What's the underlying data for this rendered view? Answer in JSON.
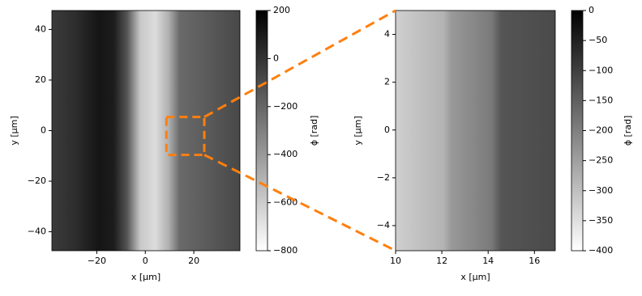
{
  "chart_data": [
    {
      "type": "image",
      "xlabel": "x [μm]",
      "ylabel": "y [μm]",
      "cmap": "gray_r",
      "xlim": [
        -38.5,
        39
      ],
      "ylim": [
        -47.5,
        47.5
      ],
      "xticks": [
        {
          "value": -20,
          "label": "−20"
        },
        0,
        20
      ],
      "yticks": [
        {
          "value": -40,
          "label": "−40"
        },
        {
          "value": -20,
          "label": "−20"
        },
        0,
        20,
        40
      ],
      "zoom_box": {
        "color": "#ff7f0e",
        "x": [
          8.7,
          24.3
        ],
        "y": [
          -9.6,
          5.4
        ]
      },
      "colorbar": {
        "label": "ϕ [rad]",
        "clim": [
          -800,
          200
        ],
        "ticks": [
          {
            "value": -800,
            "label": "−800"
          },
          {
            "value": -600,
            "label": "−600"
          },
          {
            "value": -400,
            "label": "−400"
          },
          {
            "value": -200,
            "label": "−200"
          },
          0,
          200
        ]
      }
    },
    {
      "type": "image",
      "xlabel": "x [μm]",
      "ylabel": "y [μm]",
      "cmap": "gray_r",
      "xlim": [
        10,
        16.9
      ],
      "ylim": [
        -5.05,
        5
      ],
      "xticks": [
        10,
        12,
        14,
        16
      ],
      "yticks": [
        {
          "value": -4,
          "label": "−4"
        },
        {
          "value": -2,
          "label": "−2"
        },
        0,
        2,
        4
      ],
      "colorbar": {
        "label": "ϕ [rad]",
        "clim": [
          -400,
          0
        ],
        "ticks": [
          {
            "value": -400,
            "label": "−400"
          },
          {
            "value": -350,
            "label": "−350"
          },
          {
            "value": -300,
            "label": "−300"
          },
          {
            "value": -250,
            "label": "−250"
          },
          {
            "value": -200,
            "label": "−200"
          },
          {
            "value": -150,
            "label": "−150"
          },
          {
            "value": -100,
            "label": "−100"
          },
          {
            "value": -50,
            "label": "−50"
          },
          0
        ]
      }
    }
  ]
}
